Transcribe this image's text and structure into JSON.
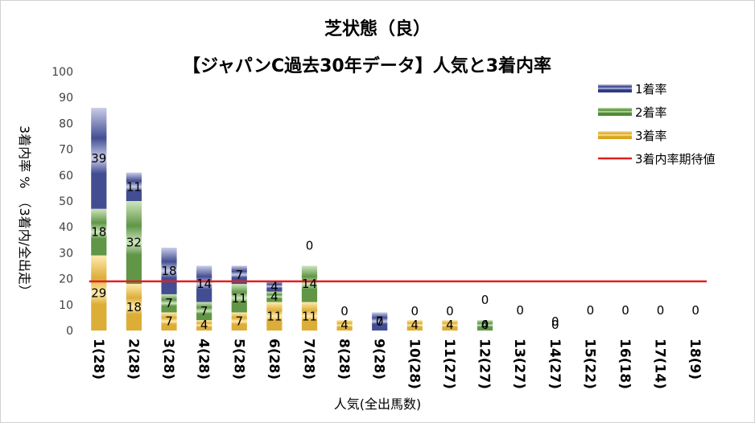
{
  "chart_data": {
    "type": "bar",
    "stacked": true,
    "title": "芝状態（良）",
    "subtitle": "【ジャパンC過去30年データ】人気と3着内率",
    "xlabel": "人気(全出馬数)",
    "ylabel": "3着内率 %　（3着内/全出走）",
    "ylim": [
      0,
      100
    ],
    "yticks": [
      0,
      10,
      20,
      30,
      40,
      50,
      60,
      70,
      80,
      90,
      100
    ],
    "grid": false,
    "legend_position": "top-right",
    "categories": [
      "1(28)",
      "2(28)",
      "3(28)",
      "4(28)",
      "5(28)",
      "6(28)",
      "7(28)",
      "8(28)",
      "9(28)",
      "10(28)",
      "11(27)",
      "12(27)",
      "13(27)",
      "14(27)",
      "15(22)",
      "16(18)",
      "17(14)",
      "18(9)"
    ],
    "series": [
      {
        "name": "3着率",
        "color": "#d9a521",
        "values": [
          29,
          18,
          7,
          4,
          7,
          11,
          11,
          4,
          0,
          4,
          4,
          0,
          0,
          0,
          0,
          0,
          0,
          0
        ]
      },
      {
        "name": "2着率",
        "color": "#4e8a32",
        "values": [
          18,
          32,
          7,
          7,
          11,
          4,
          14,
          0,
          0,
          0,
          0,
          4,
          0,
          0,
          0,
          0,
          0,
          0
        ]
      },
      {
        "name": "1着率",
        "color": "#2e3a86",
        "values": [
          39,
          11,
          18,
          14,
          7,
          4,
          0,
          0,
          7,
          0,
          0,
          0,
          0,
          0,
          0,
          0,
          0,
          0
        ]
      }
    ],
    "data_labels": [
      {
        "category": "1(28)",
        "labels": [
          "29",
          "18",
          "39"
        ]
      },
      {
        "category": "2(28)",
        "labels": [
          "18",
          "32",
          "11"
        ]
      },
      {
        "category": "3(28)",
        "labels": [
          "7",
          "7",
          "18"
        ]
      },
      {
        "category": "4(28)",
        "labels": [
          "4",
          "7",
          "14"
        ]
      },
      {
        "category": "5(28)",
        "labels": [
          "7",
          "11",
          "7"
        ]
      },
      {
        "category": "6(28)",
        "labels": [
          "11",
          "4",
          "4"
        ]
      },
      {
        "category": "7(28)",
        "labels": [
          "11",
          "14",
          "0"
        ]
      },
      {
        "category": "8(28)",
        "labels": [
          "4",
          "0",
          ""
        ]
      },
      {
        "category": "9(28)",
        "labels": [
          "",
          "0",
          "7"
        ]
      },
      {
        "category": "10(28)",
        "labels": [
          "4",
          "0",
          ""
        ]
      },
      {
        "category": "11(27)",
        "labels": [
          "4",
          "0",
          ""
        ]
      },
      {
        "category": "12(27)",
        "labels": [
          "0",
          "4",
          "0"
        ]
      },
      {
        "category": "13(27)",
        "labels": [
          "",
          "",
          "0"
        ]
      },
      {
        "category": "14(27)",
        "labels": [
          "0",
          "0",
          ""
        ]
      },
      {
        "category": "15(22)",
        "labels": [
          "",
          "",
          "0"
        ]
      },
      {
        "category": "16(18)",
        "labels": [
          "",
          "",
          "0"
        ]
      },
      {
        "category": "17(14)",
        "labels": [
          "",
          "",
          "0"
        ]
      },
      {
        "category": "18(9)",
        "labels": [
          "",
          "",
          "0"
        ]
      }
    ],
    "reference_line": {
      "name": "3着内率期待値",
      "value": 19,
      "color": "#e02020"
    },
    "legend": [
      {
        "name": "1着率",
        "color": "#2e3a86"
      },
      {
        "name": "2着率",
        "color": "#4e8a32"
      },
      {
        "name": "3着率",
        "color": "#d9a521"
      },
      {
        "name": "3着内率期待値",
        "color": "#e02020"
      }
    ]
  }
}
